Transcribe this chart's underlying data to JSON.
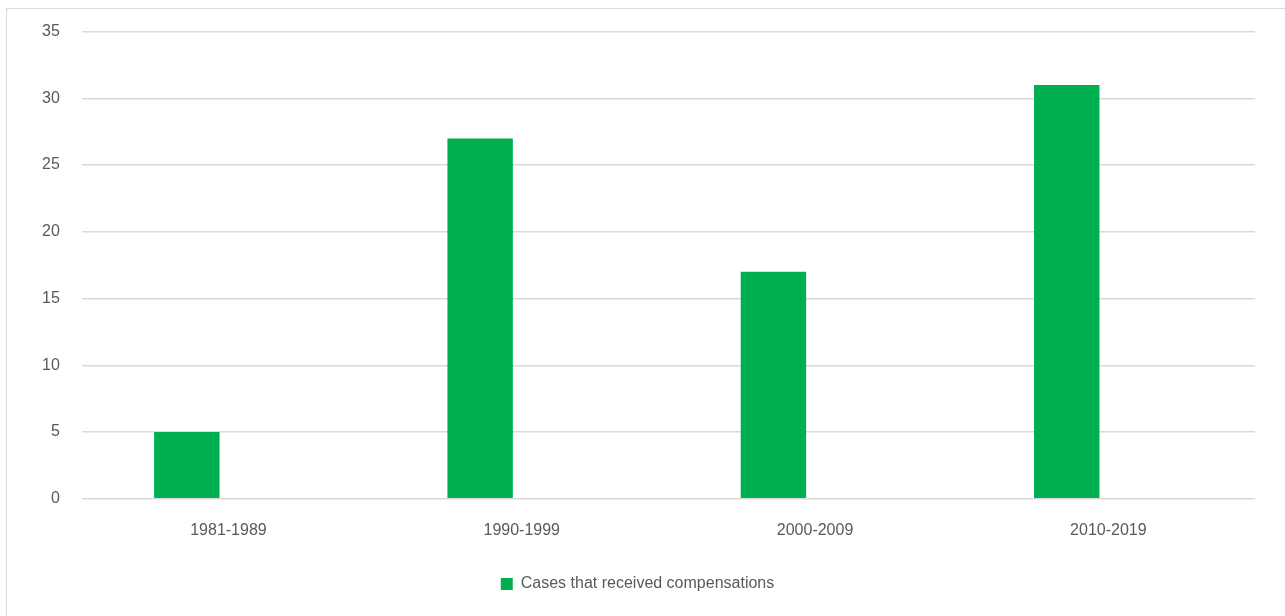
{
  "chart_data": {
    "type": "bar",
    "categories": [
      "1981-1989",
      "1990-1999",
      "2000-2009",
      "2010-2019"
    ],
    "series": [
      {
        "name": "Cases that received compensations",
        "color": "#00b050",
        "values": [
          5,
          27,
          17,
          31
        ]
      }
    ],
    "ylim": [
      0,
      35
    ],
    "yticks": [
      0,
      5,
      10,
      15,
      20,
      25,
      30,
      35
    ],
    "grid": "y",
    "legend": "bottom"
  }
}
